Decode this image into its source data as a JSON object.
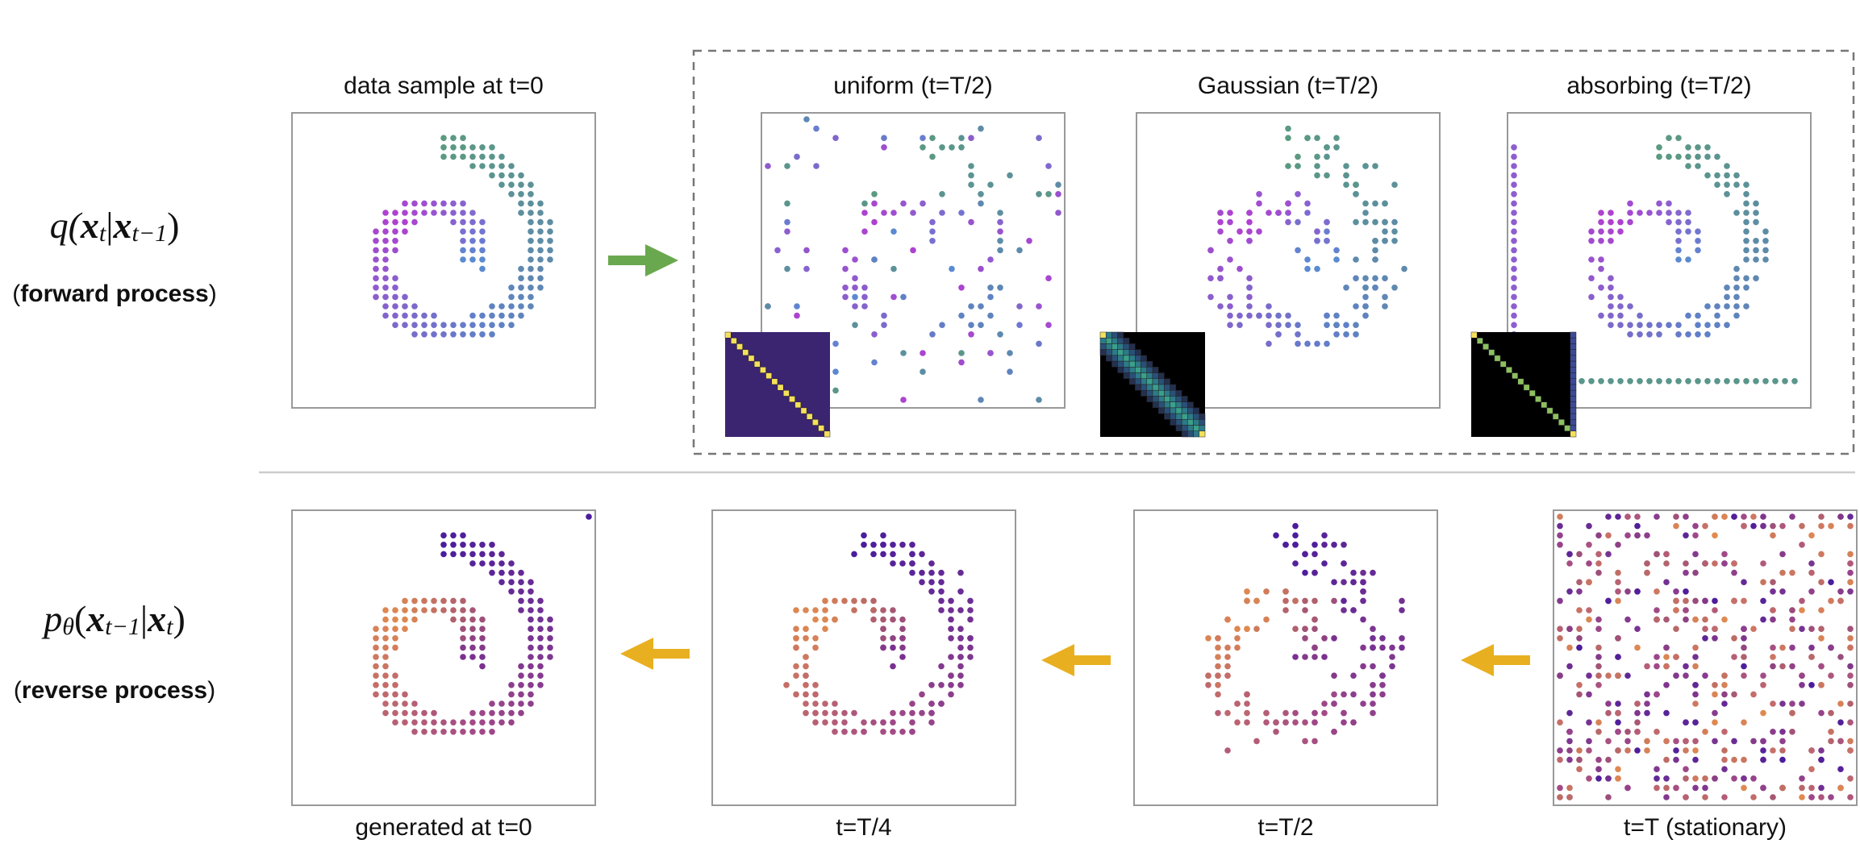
{
  "forward": {
    "formula": [
      "q(",
      "x",
      "t",
      "|",
      "x",
      "t−1",
      ")"
    ],
    "caption": {
      "open": "(",
      "bold": "forward process",
      "close": ")"
    },
    "panels": [
      "data sample at t=0",
      "uniform (t=T/2)",
      "Gaussian (t=T/2)",
      "absorbing (t=T/2)"
    ]
  },
  "reverse": {
    "formula": [
      "p",
      "θ",
      "(",
      "x",
      "t−1",
      "|",
      "x",
      "t",
      ")"
    ],
    "caption": {
      "open": "(",
      "bold": "reverse process",
      "close": ")"
    },
    "panels": [
      "generated at t=0",
      "t=T/4",
      "t=T/2",
      "t=T (stationary)"
    ]
  }
}
